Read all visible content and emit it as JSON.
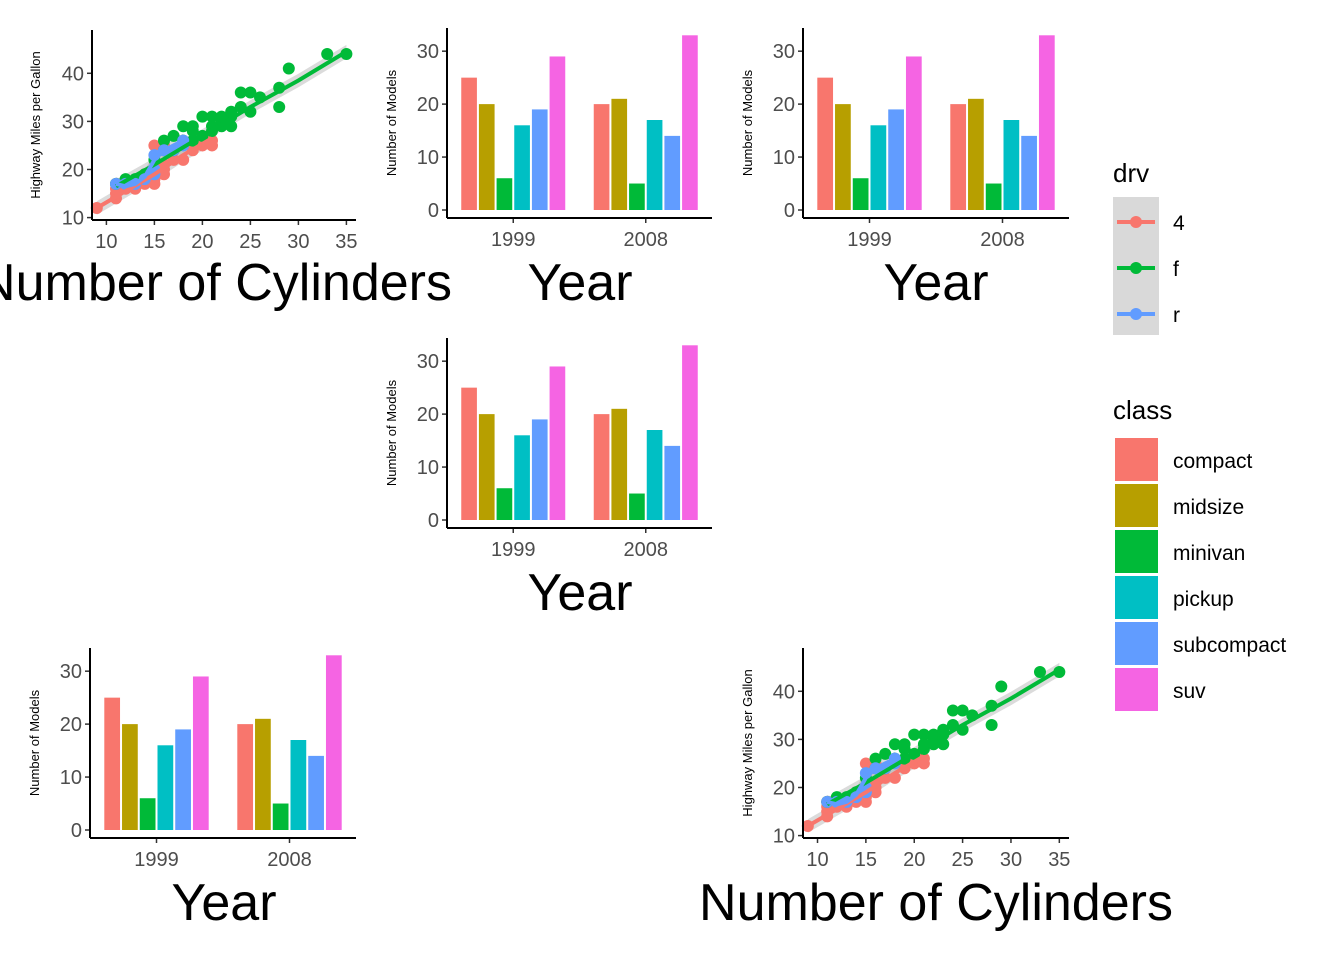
{
  "chart_data": [
    {
      "type": "scatter",
      "panel": "top-left",
      "xlabel": "Number of Cylinders",
      "ylabel": "Highway Miles per Gallon",
      "xlim": [
        8.5,
        36
      ],
      "ylim": [
        9.5,
        49
      ],
      "xticks": [
        10,
        15,
        20,
        25,
        30,
        35
      ],
      "yticks": [
        10,
        20,
        30,
        40
      ],
      "grid": false,
      "series": [
        {
          "name": "4",
          "color": "#F8766D",
          "points": [
            [
              9,
              12
            ],
            [
              11,
              14
            ],
            [
              11,
              15
            ],
            [
              11,
              16
            ],
            [
              11,
              17
            ],
            [
              12,
              16
            ],
            [
              12,
              17
            ],
            [
              13,
              16
            ],
            [
              13,
              17
            ],
            [
              14,
              17
            ],
            [
              14,
              18
            ],
            [
              14,
              19
            ],
            [
              15,
              17
            ],
            [
              15,
              18
            ],
            [
              15,
              19
            ],
            [
              15,
              20
            ],
            [
              15,
              25
            ],
            [
              16,
              19
            ],
            [
              16,
              20
            ],
            [
              16,
              21
            ],
            [
              17,
              22
            ],
            [
              17,
              24
            ],
            [
              18,
              22
            ],
            [
              19,
              24
            ],
            [
              19,
              25
            ],
            [
              20,
              25
            ],
            [
              20,
              26
            ],
            [
              21,
              25
            ],
            [
              21,
              26
            ],
            [
              16,
              25
            ]
          ],
          "trend": [
            [
              9,
              12
            ],
            [
              12,
              15.5
            ],
            [
              15,
              19
            ],
            [
              18,
              23
            ],
            [
              21,
              26.5
            ]
          ]
        },
        {
          "name": "f",
          "color": "#00BA38",
          "points": [
            [
              11,
              17
            ],
            [
              12,
              18
            ],
            [
              13,
              18
            ],
            [
              14,
              19
            ],
            [
              15,
              22
            ],
            [
              16,
              24
            ],
            [
              16,
              26
            ],
            [
              17,
              24
            ],
            [
              17,
              27
            ],
            [
              18,
              26
            ],
            [
              18,
              29
            ],
            [
              19,
              26
            ],
            [
              19,
              28
            ],
            [
              19,
              29
            ],
            [
              20,
              27
            ],
            [
              20,
              31
            ],
            [
              21,
              28
            ],
            [
              21,
              29
            ],
            [
              21,
              31
            ],
            [
              22,
              29
            ],
            [
              22,
              30
            ],
            [
              22,
              31
            ],
            [
              23,
              29
            ],
            [
              23,
              31
            ],
            [
              23,
              32
            ],
            [
              24,
              33
            ],
            [
              24,
              36
            ],
            [
              25,
              32
            ],
            [
              25,
              36
            ],
            [
              26,
              35
            ],
            [
              28,
              33
            ],
            [
              28,
              37
            ],
            [
              29,
              41
            ],
            [
              33,
              44
            ],
            [
              35,
              44
            ]
          ],
          "trend": [
            [
              11,
              16.5
            ],
            [
              15,
              21
            ],
            [
              20,
              27
            ],
            [
              25,
              33
            ],
            [
              30,
              38.5
            ],
            [
              35,
              44.5
            ]
          ]
        },
        {
          "name": "r",
          "color": "#619CFF",
          "points": [
            [
              11,
              17
            ],
            [
              12,
              17
            ],
            [
              13,
              17
            ],
            [
              14,
              18
            ],
            [
              15,
              19
            ],
            [
              15,
              20
            ],
            [
              15,
              23
            ],
            [
              16,
              24
            ],
            [
              17,
              24
            ],
            [
              18,
              25
            ],
            [
              18,
              26
            ]
          ],
          "trend": [
            [
              11,
              17
            ],
            [
              12,
              16.5
            ],
            [
              13,
              17
            ],
            [
              14,
              18.5
            ],
            [
              15,
              22
            ],
            [
              16,
              24
            ],
            [
              17,
              25
            ],
            [
              18,
              26
            ]
          ]
        }
      ]
    },
    {
      "type": "bar",
      "panel": "top-middle",
      "categories": [
        "1999",
        "2008"
      ],
      "xlabel": "Year",
      "ylabel": "Number of Models",
      "ylim": [
        0,
        34
      ],
      "yticks": [
        0,
        10,
        20,
        30
      ],
      "grid": false,
      "series": [
        {
          "name": "compact",
          "color": "#F8766D",
          "values": [
            25,
            20
          ]
        },
        {
          "name": "midsize",
          "color": "#B79F00",
          "values": [
            20,
            21
          ]
        },
        {
          "name": "minivan",
          "color": "#00BA38",
          "values": [
            6,
            5
          ]
        },
        {
          "name": "pickup",
          "color": "#00BFC4",
          "values": [
            16,
            17
          ]
        },
        {
          "name": "subcompact",
          "color": "#619CFF",
          "values": [
            19,
            14
          ]
        },
        {
          "name": "suv",
          "color": "#F564E3",
          "values": [
            29,
            33
          ]
        }
      ]
    },
    {
      "type": "bar",
      "panel": "top-right",
      "categories": [
        "1999",
        "2008"
      ],
      "xlabel": "Year",
      "ylabel": "Number of Models",
      "ylim": [
        0,
        34
      ],
      "yticks": [
        0,
        10,
        20,
        30
      ],
      "grid": false,
      "series": [
        {
          "name": "compact",
          "color": "#F8766D",
          "values": [
            25,
            20
          ]
        },
        {
          "name": "midsize",
          "color": "#B79F00",
          "values": [
            20,
            21
          ]
        },
        {
          "name": "minivan",
          "color": "#00BA38",
          "values": [
            6,
            5
          ]
        },
        {
          "name": "pickup",
          "color": "#00BFC4",
          "values": [
            16,
            17
          ]
        },
        {
          "name": "subcompact",
          "color": "#619CFF",
          "values": [
            19,
            14
          ]
        },
        {
          "name": "suv",
          "color": "#F564E3",
          "values": [
            29,
            33
          ]
        }
      ]
    },
    {
      "type": "bar",
      "panel": "middle-center",
      "categories": [
        "1999",
        "2008"
      ],
      "xlabel": "Year",
      "ylabel": "Number of Models",
      "ylim": [
        0,
        34
      ],
      "yticks": [
        0,
        10,
        20,
        30
      ],
      "grid": false,
      "series": [
        {
          "name": "compact",
          "color": "#F8766D",
          "values": [
            25,
            20
          ]
        },
        {
          "name": "midsize",
          "color": "#B79F00",
          "values": [
            20,
            21
          ]
        },
        {
          "name": "minivan",
          "color": "#00BA38",
          "values": [
            6,
            5
          ]
        },
        {
          "name": "pickup",
          "color": "#00BFC4",
          "values": [
            16,
            17
          ]
        },
        {
          "name": "subcompact",
          "color": "#619CFF",
          "values": [
            19,
            14
          ]
        },
        {
          "name": "suv",
          "color": "#F564E3",
          "values": [
            29,
            33
          ]
        }
      ]
    },
    {
      "type": "bar",
      "panel": "bottom-left",
      "categories": [
        "1999",
        "2008"
      ],
      "xlabel": "Year",
      "ylabel": "Number of Models",
      "ylim": [
        0,
        34
      ],
      "yticks": [
        0,
        10,
        20,
        30
      ],
      "grid": false,
      "series": [
        {
          "name": "compact",
          "color": "#F8766D",
          "values": [
            25,
            20
          ]
        },
        {
          "name": "midsize",
          "color": "#B79F00",
          "values": [
            20,
            21
          ]
        },
        {
          "name": "minivan",
          "color": "#00BA38",
          "values": [
            6,
            5
          ]
        },
        {
          "name": "pickup",
          "color": "#00BFC4",
          "values": [
            16,
            17
          ]
        },
        {
          "name": "subcompact",
          "color": "#619CFF",
          "values": [
            19,
            14
          ]
        },
        {
          "name": "suv",
          "color": "#F564E3",
          "values": [
            29,
            33
          ]
        }
      ]
    },
    {
      "type": "scatter",
      "panel": "bottom-right",
      "xlabel": "Number of Cylinders",
      "ylabel": "Highway Miles per Gallon",
      "xlim": [
        8.5,
        36
      ],
      "ylim": [
        9.5,
        49
      ],
      "xticks": [
        10,
        15,
        20,
        25,
        30,
        35
      ],
      "yticks": [
        10,
        20,
        30,
        40
      ],
      "grid": false,
      "series": [
        {
          "name": "4",
          "color": "#F8766D",
          "points": [
            [
              9,
              12
            ],
            [
              11,
              14
            ],
            [
              11,
              15
            ],
            [
              11,
              16
            ],
            [
              11,
              17
            ],
            [
              12,
              16
            ],
            [
              12,
              17
            ],
            [
              13,
              16
            ],
            [
              13,
              17
            ],
            [
              14,
              17
            ],
            [
              14,
              18
            ],
            [
              14,
              19
            ],
            [
              15,
              17
            ],
            [
              15,
              18
            ],
            [
              15,
              19
            ],
            [
              15,
              20
            ],
            [
              15,
              25
            ],
            [
              16,
              19
            ],
            [
              16,
              20
            ],
            [
              16,
              21
            ],
            [
              17,
              22
            ],
            [
              17,
              24
            ],
            [
              18,
              22
            ],
            [
              19,
              24
            ],
            [
              19,
              25
            ],
            [
              20,
              25
            ],
            [
              20,
              26
            ],
            [
              21,
              25
            ],
            [
              21,
              26
            ],
            [
              16,
              25
            ]
          ],
          "trend": [
            [
              9,
              12
            ],
            [
              12,
              15.5
            ],
            [
              15,
              19
            ],
            [
              18,
              23
            ],
            [
              21,
              26.5
            ]
          ]
        },
        {
          "name": "f",
          "color": "#00BA38",
          "points": [
            [
              11,
              17
            ],
            [
              12,
              18
            ],
            [
              13,
              18
            ],
            [
              14,
              19
            ],
            [
              15,
              22
            ],
            [
              16,
              24
            ],
            [
              16,
              26
            ],
            [
              17,
              24
            ],
            [
              17,
              27
            ],
            [
              18,
              26
            ],
            [
              18,
              29
            ],
            [
              19,
              26
            ],
            [
              19,
              28
            ],
            [
              19,
              29
            ],
            [
              20,
              27
            ],
            [
              20,
              31
            ],
            [
              21,
              28
            ],
            [
              21,
              29
            ],
            [
              21,
              31
            ],
            [
              22,
              29
            ],
            [
              22,
              30
            ],
            [
              22,
              31
            ],
            [
              23,
              29
            ],
            [
              23,
              31
            ],
            [
              23,
              32
            ],
            [
              24,
              33
            ],
            [
              24,
              36
            ],
            [
              25,
              32
            ],
            [
              25,
              36
            ],
            [
              26,
              35
            ],
            [
              28,
              33
            ],
            [
              28,
              37
            ],
            [
              29,
              41
            ],
            [
              33,
              44
            ],
            [
              35,
              44
            ]
          ],
          "trend": [
            [
              11,
              16.5
            ],
            [
              15,
              21
            ],
            [
              20,
              27
            ],
            [
              25,
              33
            ],
            [
              30,
              38.5
            ],
            [
              35,
              44.5
            ]
          ]
        },
        {
          "name": "r",
          "color": "#619CFF",
          "points": [
            [
              11,
              17
            ],
            [
              12,
              17
            ],
            [
              13,
              17
            ],
            [
              14,
              18
            ],
            [
              15,
              19
            ],
            [
              15,
              20
            ],
            [
              15,
              23
            ],
            [
              16,
              24
            ],
            [
              17,
              24
            ],
            [
              18,
              25
            ],
            [
              18,
              26
            ]
          ],
          "trend": [
            [
              11,
              17
            ],
            [
              12,
              16.5
            ],
            [
              13,
              17
            ],
            [
              14,
              18.5
            ],
            [
              15,
              22
            ],
            [
              16,
              24
            ],
            [
              17,
              25
            ],
            [
              18,
              26
            ]
          ]
        }
      ]
    }
  ],
  "legends": {
    "drv": {
      "title": "drv",
      "items": [
        {
          "label": "4",
          "color": "#F8766D"
        },
        {
          "label": "f",
          "color": "#00BA38"
        },
        {
          "label": "r",
          "color": "#619CFF"
        }
      ]
    },
    "class": {
      "title": "class",
      "items": [
        {
          "label": "compact",
          "color": "#F8766D"
        },
        {
          "label": "midsize",
          "color": "#B79F00"
        },
        {
          "label": "minivan",
          "color": "#00BA38"
        },
        {
          "label": "pickup",
          "color": "#00BFC4"
        },
        {
          "label": "subcompact",
          "color": "#619CFF"
        },
        {
          "label": "suv",
          "color": "#F564E3"
        }
      ]
    }
  }
}
